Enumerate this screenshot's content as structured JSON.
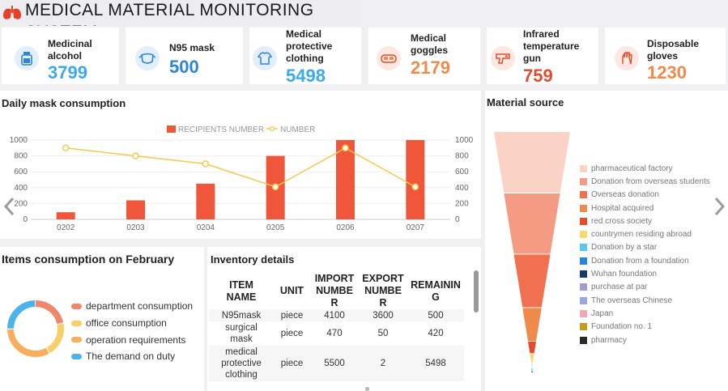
{
  "header": {
    "title": "MEDICAL MATERIAL MONITORING SYSTEM",
    "logo_icon": "lungs-icon"
  },
  "stats": [
    {
      "label_lines": [
        "Medicinal",
        "alcohol"
      ],
      "value": "3799",
      "color": "#3aabea",
      "icon": "bottle-icon"
    },
    {
      "label_lines": [
        "N95 mask"
      ],
      "value": "500",
      "color": "#2c86d8",
      "icon": "mask-icon"
    },
    {
      "label_lines": [
        "Medical",
        "protective",
        "clothing"
      ],
      "value": "5498",
      "color": "#3aabea",
      "icon": "clothing-icon"
    },
    {
      "label_lines": [
        "Medical",
        "goggles"
      ],
      "value": "2179",
      "color": "#f08a4b",
      "icon": "goggles-icon"
    },
    {
      "label_lines": [
        "Infrared",
        "temperature",
        "gun"
      ],
      "value": "759",
      "color": "#e64a2e",
      "icon": "thermometer-gun-icon"
    },
    {
      "label_lines": [
        "Disposable",
        "gloves"
      ],
      "value": "1230",
      "color": "#f08a4b",
      "icon": "glove-icon"
    }
  ],
  "daily_mask": {
    "title": "Daily mask consumption",
    "legend": [
      "RECIPIENTS NUMBER",
      "NUMBER"
    ]
  },
  "chart_data": [
    {
      "type": "bar",
      "title": "Daily mask consumption",
      "categories": [
        "0202",
        "0203",
        "0204",
        "0205",
        "0206",
        "0207"
      ],
      "ylim": [
        0,
        1000
      ],
      "yticks": [
        0,
        200,
        400,
        600,
        800,
        1000
      ],
      "series": [
        {
          "name": "RECIPIENTS NUMBER",
          "type": "bar",
          "color": "#f0573a",
          "values": [
            90,
            240,
            450,
            800,
            1000,
            1000
          ]
        },
        {
          "name": "NUMBER",
          "type": "line",
          "color": "#f7c84a",
          "values": [
            900,
            800,
            700,
            410,
            900,
            410
          ]
        }
      ],
      "legend_position": "top-center",
      "grid": true
    },
    {
      "type": "pie",
      "title": "Items consumption on February",
      "donut": true,
      "categories": [
        "department consumption",
        "office consumption",
        "operation requirements",
        "The demand on duty"
      ],
      "colors": [
        "#f0866b",
        "#f8cf6b",
        "#f7ae5f",
        "#4ab4e8"
      ],
      "values": [
        22,
        20,
        33,
        25
      ]
    },
    {
      "type": "funnel",
      "title": "Material source",
      "categories": [
        "pharmaceutical factory",
        "Donation from overseas students",
        "Overseas donation",
        "Hospital acquired",
        "red cross society",
        "countrymen residing abroad",
        "Donation by a star",
        "Donation from a foundation",
        "Wuhan foundation",
        "purchase at par",
        "The overseas Chinese",
        "Japan",
        "Foundation no. 1",
        "pharmacy"
      ],
      "colors": [
        "#fbd3c6",
        "#f69b83",
        "#f0704f",
        "#f08a4b",
        "#ea4a2c",
        "#f8d96a",
        "#5bc8ea",
        "#2c86d8",
        "#1a3a66",
        "#9c9cd0",
        "#9aa4e8",
        "#f4a8b6",
        "#c89a1a",
        "#2a2a2a"
      ],
      "values": [
        14,
        13,
        12,
        11,
        10,
        9,
        8,
        7,
        6,
        5,
        4,
        3,
        2,
        1
      ]
    }
  ],
  "items_feb": {
    "title": "Items consumption on February"
  },
  "inventory": {
    "title": "Inventory details",
    "headers": [
      [
        "ITEM",
        "NAME"
      ],
      [
        "UNIT"
      ],
      [
        "IMPORT",
        "NUMBE",
        "R"
      ],
      [
        "EXPORT",
        "NUMBE",
        "R"
      ],
      [
        "REMAININ",
        "G"
      ]
    ],
    "rows": [
      {
        "name": [
          "N95mask"
        ],
        "unit": "piece",
        "import": "4100",
        "export": "3600",
        "remaining": "500"
      },
      {
        "name": [
          "surgical",
          "mask"
        ],
        "unit": "piece",
        "import": "470",
        "export": "50",
        "remaining": "420"
      },
      {
        "name": [
          "medical",
          "protective",
          "clothing"
        ],
        "unit": "piece",
        "import": "5500",
        "export": "2",
        "remaining": "5498"
      }
    ]
  },
  "material_source": {
    "title": "Material source"
  },
  "carousel": {
    "prev_icon": "chevron-left-icon",
    "next_icon": "chevron-right-icon"
  }
}
